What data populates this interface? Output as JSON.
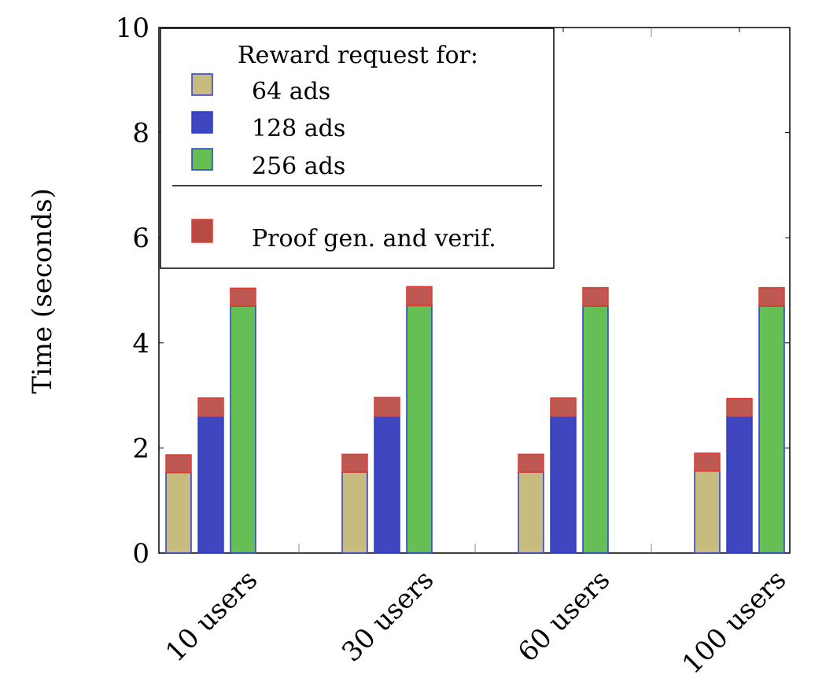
{
  "chart_data": {
    "type": "bar",
    "stacked_component": "Proof gen. and verif.",
    "title": "",
    "xlabel": "",
    "ylabel": "Time (seconds)",
    "ylim": [
      0,
      10
    ],
    "yticks": [
      "0",
      "2",
      "4",
      "6",
      "8",
      "10"
    ],
    "categories": [
      "10 users",
      "30 users",
      "60 users",
      "100 users"
    ],
    "series": [
      {
        "name": "64 ads",
        "color": "#c8bb80",
        "values": [
          1.53,
          1.54,
          1.54,
          1.56
        ],
        "overlay": [
          0.34,
          0.34,
          0.34,
          0.34
        ]
      },
      {
        "name": "128 ads",
        "color": "#3f46be",
        "values": [
          2.6,
          2.6,
          2.6,
          2.6
        ],
        "overlay": [
          0.35,
          0.36,
          0.35,
          0.34
        ]
      },
      {
        "name": "256 ads",
        "color": "#66bf55",
        "values": [
          4.7,
          4.71,
          4.7,
          4.7
        ],
        "overlay": [
          0.34,
          0.36,
          0.35,
          0.35
        ]
      }
    ],
    "overlay_color": "#b84a44",
    "legend": {
      "title": "Reward request for:",
      "entries": [
        "64 ads",
        "128 ads",
        "256 ads"
      ],
      "extra_entry": "Proof gen. and verif.",
      "placement": "top-left"
    }
  }
}
